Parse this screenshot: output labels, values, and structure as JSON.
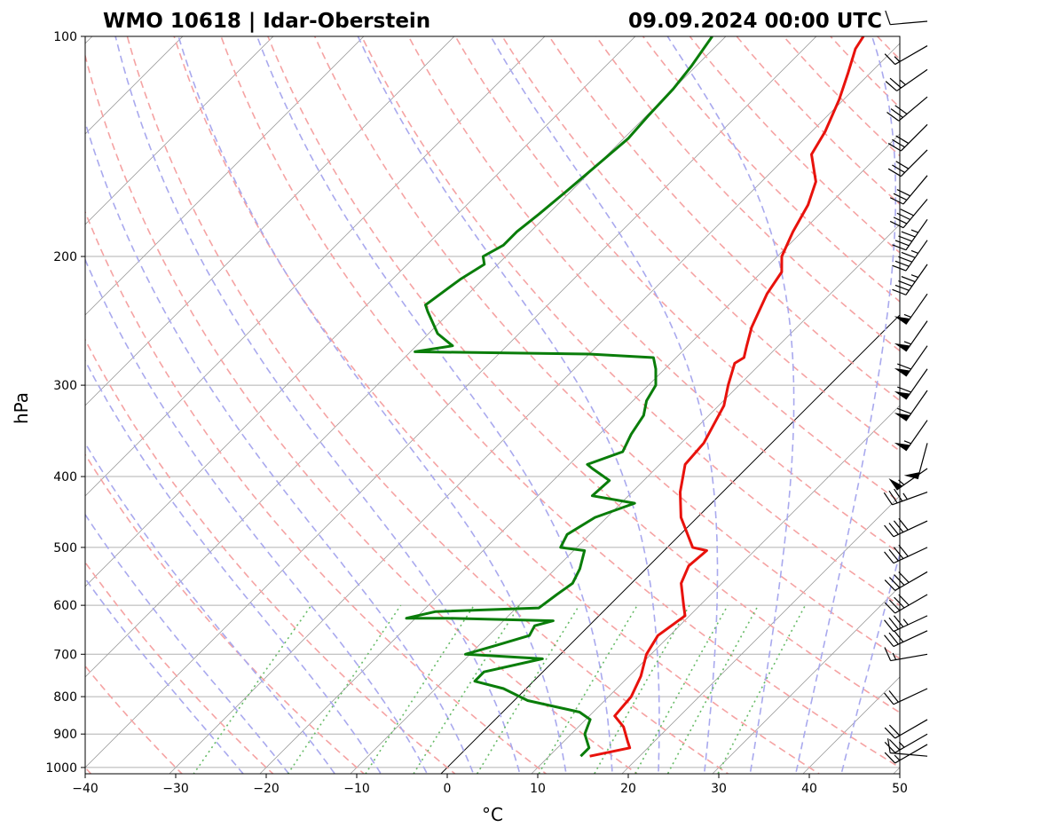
{
  "title_left": "WMO 10618 | Idar-Oberstein",
  "title_right": "09.09.2024 00:00 UTC",
  "colors": {
    "temperature": "#e8120c",
    "dewpoint": "#0a7d0a",
    "dry_adiabat": "#f5a3a3",
    "moist_adiabat": "#a9a9ee",
    "mixing_ratio": "#66bb66",
    "isotherm": "#999999",
    "isobar": "#b0b0b0",
    "zero_isotherm": "#000000"
  },
  "chart_data": {
    "type": "line",
    "kind": "skew-t log-p",
    "xlabel": "°C",
    "ylabel": "hPa",
    "xlim": [
      -40,
      50
    ],
    "ylim": [
      1020,
      100
    ],
    "yscale": "log",
    "xticks": [
      -40,
      -30,
      -20,
      -10,
      0,
      10,
      20,
      30,
      40,
      50
    ],
    "yticks": [
      1000,
      900,
      800,
      700,
      600,
      500,
      400,
      300,
      200,
      100
    ],
    "grid": true,
    "series": [
      {
        "role": "temperature",
        "points": [
          [
            14.5,
            965
          ],
          [
            18,
            940
          ],
          [
            17,
            920
          ],
          [
            15,
            880
          ],
          [
            12.8,
            850
          ],
          [
            12.5,
            800
          ],
          [
            11.3,
            750
          ],
          [
            9.5,
            700
          ],
          [
            8.7,
            660
          ],
          [
            9.5,
            620
          ],
          [
            8.2,
            600
          ],
          [
            5.5,
            560
          ],
          [
            4.4,
            530
          ],
          [
            4.7,
            505
          ],
          [
            2.8,
            500
          ],
          [
            -1.8,
            455
          ],
          [
            -4.7,
            420
          ],
          [
            -7.2,
            385
          ],
          [
            -7.5,
            360
          ],
          [
            -9.4,
            320
          ],
          [
            -11.2,
            300
          ],
          [
            -12.9,
            280
          ],
          [
            -12.5,
            275
          ],
          [
            -13,
            270
          ],
          [
            -13.5,
            265
          ],
          [
            -15,
            250
          ],
          [
            -17,
            225
          ],
          [
            -17.8,
            210
          ],
          [
            -19.5,
            200
          ],
          [
            -21,
            185
          ],
          [
            -22.3,
            170
          ],
          [
            -24,
            158
          ],
          [
            -27.5,
            145
          ],
          [
            -28.5,
            135
          ],
          [
            -30.5,
            122
          ],
          [
            -32.5,
            112
          ],
          [
            -34.3,
            104
          ],
          [
            -34.8,
            100
          ]
        ]
      },
      {
        "role": "dewpoint",
        "points": [
          [
            13.5,
            965
          ],
          [
            13.5,
            940
          ],
          [
            11.5,
            900
          ],
          [
            10.5,
            860
          ],
          [
            8.5,
            840
          ],
          [
            1.5,
            810
          ],
          [
            -2.5,
            780
          ],
          [
            -6.5,
            762
          ],
          [
            -6.5,
            740
          ],
          [
            -1.5,
            710
          ],
          [
            -10.5,
            700
          ],
          [
            -8,
            680
          ],
          [
            -5.5,
            660
          ],
          [
            -6,
            640
          ],
          [
            -4.5,
            630
          ],
          [
            -16.5,
            625
          ],
          [
            -21,
            625
          ],
          [
            -18.5,
            612
          ],
          [
            -7.5,
            605
          ],
          [
            -7,
            580
          ],
          [
            -6.5,
            560
          ],
          [
            -7.3,
            535
          ],
          [
            -8.8,
            505
          ],
          [
            -11.8,
            500
          ],
          [
            -12.5,
            480
          ],
          [
            -11.3,
            455
          ],
          [
            -8.5,
            435
          ],
          [
            -14,
            425
          ],
          [
            -13.8,
            405
          ],
          [
            -17,
            390
          ],
          [
            -18,
            385
          ],
          [
            -15.5,
            370
          ],
          [
            -16.5,
            350
          ],
          [
            -17.2,
            330
          ],
          [
            -18.5,
            315
          ],
          [
            -19.2,
            300
          ],
          [
            -21,
            285
          ],
          [
            -22.5,
            275
          ],
          [
            -30,
            272
          ],
          [
            -49.5,
            270
          ],
          [
            -46,
            265
          ],
          [
            -49,
            255
          ],
          [
            -52.5,
            238
          ],
          [
            -53.5,
            233
          ],
          [
            -52.5,
            215
          ],
          [
            -51.5,
            205
          ],
          [
            -52.5,
            200
          ],
          [
            -51.5,
            193
          ],
          [
            -51.5,
            185
          ],
          [
            -51,
            175
          ],
          [
            -50.5,
            163
          ],
          [
            -50,
            150
          ],
          [
            -49.5,
            138
          ],
          [
            -49.8,
            128
          ],
          [
            -50,
            118
          ],
          [
            -50.5,
            110
          ],
          [
            -51.5,
            100
          ]
        ]
      }
    ],
    "wind_barbs": [
      {
        "p": 965,
        "dir": 275,
        "kt": 10
      },
      {
        "p": 930,
        "dir": 240,
        "kt": 15
      },
      {
        "p": 900,
        "dir": 240,
        "kt": 25
      },
      {
        "p": 860,
        "dir": 240,
        "kt": 20
      },
      {
        "p": 780,
        "dir": 245,
        "kt": 20
      },
      {
        "p": 700,
        "dir": 260,
        "kt": 15
      },
      {
        "p": 650,
        "dir": 245,
        "kt": 30
      },
      {
        "p": 620,
        "dir": 245,
        "kt": 35
      },
      {
        "p": 580,
        "dir": 240,
        "kt": 40
      },
      {
        "p": 540,
        "dir": 240,
        "kt": 40
      },
      {
        "p": 500,
        "dir": 245,
        "kt": 40
      },
      {
        "p": 460,
        "dir": 245,
        "kt": 40
      },
      {
        "p": 420,
        "dir": 250,
        "kt": 35
      },
      {
        "p": 390,
        "dir": 235,
        "kt": 55
      },
      {
        "p": 360,
        "dir": 195,
        "kt": 50
      },
      {
        "p": 335,
        "dir": 215,
        "kt": 55
      },
      {
        "p": 305,
        "dir": 215,
        "kt": 60
      },
      {
        "p": 285,
        "dir": 215,
        "kt": 60
      },
      {
        "p": 265,
        "dir": 215,
        "kt": 60
      },
      {
        "p": 245,
        "dir": 215,
        "kt": 55
      },
      {
        "p": 225,
        "dir": 215,
        "kt": 55
      },
      {
        "p": 205,
        "dir": 215,
        "kt": 45
      },
      {
        "p": 190,
        "dir": 215,
        "kt": 45
      },
      {
        "p": 178,
        "dir": 215,
        "kt": 45
      },
      {
        "p": 167,
        "dir": 220,
        "kt": 40
      },
      {
        "p": 155,
        "dir": 220,
        "kt": 30
      },
      {
        "p": 143,
        "dir": 225,
        "kt": 30
      },
      {
        "p": 132,
        "dir": 225,
        "kt": 30
      },
      {
        "p": 121,
        "dir": 230,
        "kt": 30
      },
      {
        "p": 111,
        "dir": 235,
        "kt": 25
      },
      {
        "p": 103,
        "dir": 240,
        "kt": 15
      },
      {
        "p": 95,
        "dir": 265,
        "kt": 10
      }
    ]
  }
}
